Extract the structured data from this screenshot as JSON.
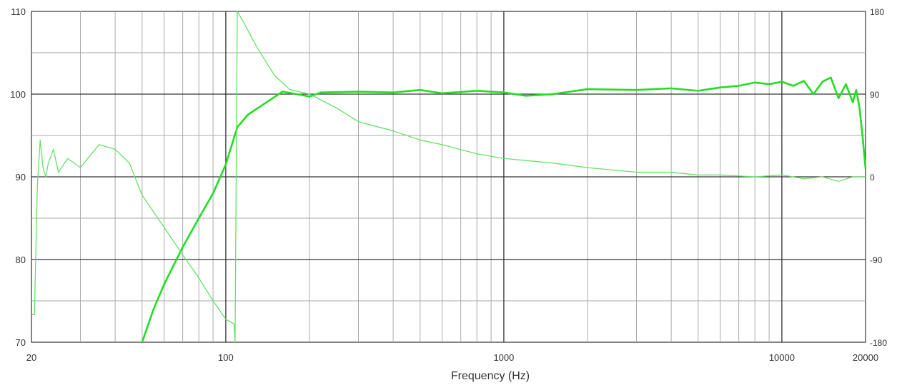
{
  "chart_data": {
    "type": "line",
    "xlabel": "Frequency (Hz)",
    "xscale": "log",
    "xlim": [
      20,
      20000
    ],
    "x_ticks": [
      "20",
      "100",
      "1000",
      "10000",
      "20000"
    ],
    "ylim_left": [
      70,
      110
    ],
    "y_ticks_left": [
      "70",
      "80",
      "90",
      "100",
      "110"
    ],
    "ylim_right": [
      -180,
      180
    ],
    "y_ticks_right": [
      "-180",
      "-90",
      "0",
      "90",
      "180"
    ],
    "grid": true,
    "colors": {
      "magnitude": "#22dd22",
      "phase": "#66e066",
      "grid": "#aaaaaa",
      "major_grid": "#333333"
    },
    "series": [
      {
        "axis": "left",
        "points": [
          [
            50,
            70
          ],
          [
            55,
            74
          ],
          [
            60,
            77
          ],
          [
            70,
            81.5
          ],
          [
            80,
            85
          ],
          [
            90,
            88
          ],
          [
            100,
            91.5
          ],
          [
            110,
            96
          ],
          [
            120,
            97.5
          ],
          [
            140,
            99
          ],
          [
            160,
            100.3
          ],
          [
            180,
            100
          ],
          [
            200,
            99.7
          ],
          [
            220,
            100.2
          ],
          [
            300,
            100.3
          ],
          [
            400,
            100.2
          ],
          [
            500,
            100.5
          ],
          [
            600,
            100.1
          ],
          [
            800,
            100.4
          ],
          [
            1000,
            100.2
          ],
          [
            1200,
            99.8
          ],
          [
            1500,
            100
          ],
          [
            2000,
            100.6
          ],
          [
            3000,
            100.5
          ],
          [
            4000,
            100.7
          ],
          [
            5000,
            100.4
          ],
          [
            6000,
            100.8
          ],
          [
            7000,
            101
          ],
          [
            8000,
            101.4
          ],
          [
            9000,
            101.2
          ],
          [
            10000,
            101.5
          ],
          [
            11000,
            101
          ],
          [
            12000,
            101.6
          ],
          [
            13000,
            100
          ],
          [
            14000,
            101.5
          ],
          [
            15000,
            102
          ],
          [
            16000,
            99.5
          ],
          [
            17000,
            101.2
          ],
          [
            18000,
            99
          ],
          [
            18500,
            100.5
          ],
          [
            19000,
            98.5
          ],
          [
            19500,
            95
          ],
          [
            20000,
            91
          ]
        ]
      },
      {
        "axis": "right",
        "points": [
          [
            20,
            -150
          ],
          [
            20.5,
            -150
          ],
          [
            21,
            -10
          ],
          [
            21.5,
            40
          ],
          [
            22,
            10
          ],
          [
            22.5,
            0
          ],
          [
            23,
            15
          ],
          [
            24,
            30
          ],
          [
            25,
            5
          ],
          [
            27,
            20
          ],
          [
            30,
            10
          ],
          [
            35,
            35
          ],
          [
            40,
            30
          ],
          [
            45,
            15
          ],
          [
            50,
            -20
          ],
          [
            60,
            -55
          ],
          [
            70,
            -85
          ],
          [
            80,
            -110
          ],
          [
            90,
            -135
          ],
          [
            100,
            -155
          ],
          [
            107,
            -160
          ],
          [
            108,
            -180
          ],
          [
            110,
            180
          ],
          [
            115,
            170
          ],
          [
            130,
            140
          ],
          [
            150,
            110
          ],
          [
            170,
            95
          ],
          [
            200,
            90
          ],
          [
            250,
            75
          ],
          [
            300,
            60
          ],
          [
            400,
            50
          ],
          [
            500,
            40
          ],
          [
            600,
            35
          ],
          [
            800,
            25
          ],
          [
            1000,
            20
          ],
          [
            1500,
            15
          ],
          [
            2000,
            10
          ],
          [
            3000,
            5
          ],
          [
            4000,
            5
          ],
          [
            5000,
            2
          ],
          [
            6000,
            2
          ],
          [
            8000,
            0
          ],
          [
            10000,
            2
          ],
          [
            12000,
            -2
          ],
          [
            14000,
            0
          ],
          [
            16000,
            -5
          ],
          [
            18000,
            0
          ],
          [
            20000,
            0
          ]
        ]
      }
    ]
  }
}
